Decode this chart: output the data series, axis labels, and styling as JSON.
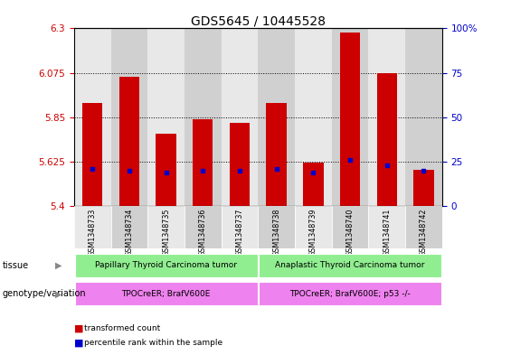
{
  "title": "GDS5645 / 10445528",
  "samples": [
    "GSM1348733",
    "GSM1348734",
    "GSM1348735",
    "GSM1348736",
    "GSM1348737",
    "GSM1348738",
    "GSM1348739",
    "GSM1348740",
    "GSM1348741",
    "GSM1348742"
  ],
  "transformed_count": [
    5.92,
    6.055,
    5.765,
    5.84,
    5.82,
    5.92,
    5.62,
    6.28,
    6.075,
    5.585
  ],
  "percentile_rank": [
    21,
    20,
    19,
    20,
    20,
    21,
    19,
    26,
    23,
    20
  ],
  "y_min": 5.4,
  "y_max": 6.3,
  "y_ticks": [
    5.4,
    5.625,
    5.85,
    6.075,
    6.3
  ],
  "y_tick_labels": [
    "5.4",
    "5.625",
    "5.85",
    "6.075",
    "6.3"
  ],
  "right_y_ticks": [
    0,
    25,
    50,
    75,
    100
  ],
  "right_y_labels": [
    "0",
    "25",
    "50",
    "75",
    "100%"
  ],
  "bar_color": "#cc0000",
  "percentile_color": "#0000cc",
  "bar_width": 0.55,
  "tissue_groups": [
    {
      "label": "Papillary Thyroid Carcinoma tumor",
      "start": 0,
      "end": 5,
      "color": "#90ee90"
    },
    {
      "label": "Anaplastic Thyroid Carcinoma tumor",
      "start": 5,
      "end": 10,
      "color": "#90ee90"
    }
  ],
  "genotype_groups": [
    {
      "label": "TPOCreER; BrafV600E",
      "start": 0,
      "end": 5,
      "color": "#ee82ee"
    },
    {
      "label": "TPOCreER; BrafV600E; p53 -/-",
      "start": 5,
      "end": 10,
      "color": "#ee82ee"
    }
  ],
  "tissue_label": "tissue",
  "genotype_label": "genotype/variation",
  "legend_items": [
    {
      "color": "#cc0000",
      "label": "transformed count"
    },
    {
      "color": "#0000cc",
      "label": "percentile rank within the sample"
    }
  ],
  "title_fontsize": 10,
  "axis_tick_fontsize": 7.5,
  "label_fontsize": 7.5,
  "bg_colors": [
    "#e8e8e8",
    "#d0d0d0"
  ]
}
